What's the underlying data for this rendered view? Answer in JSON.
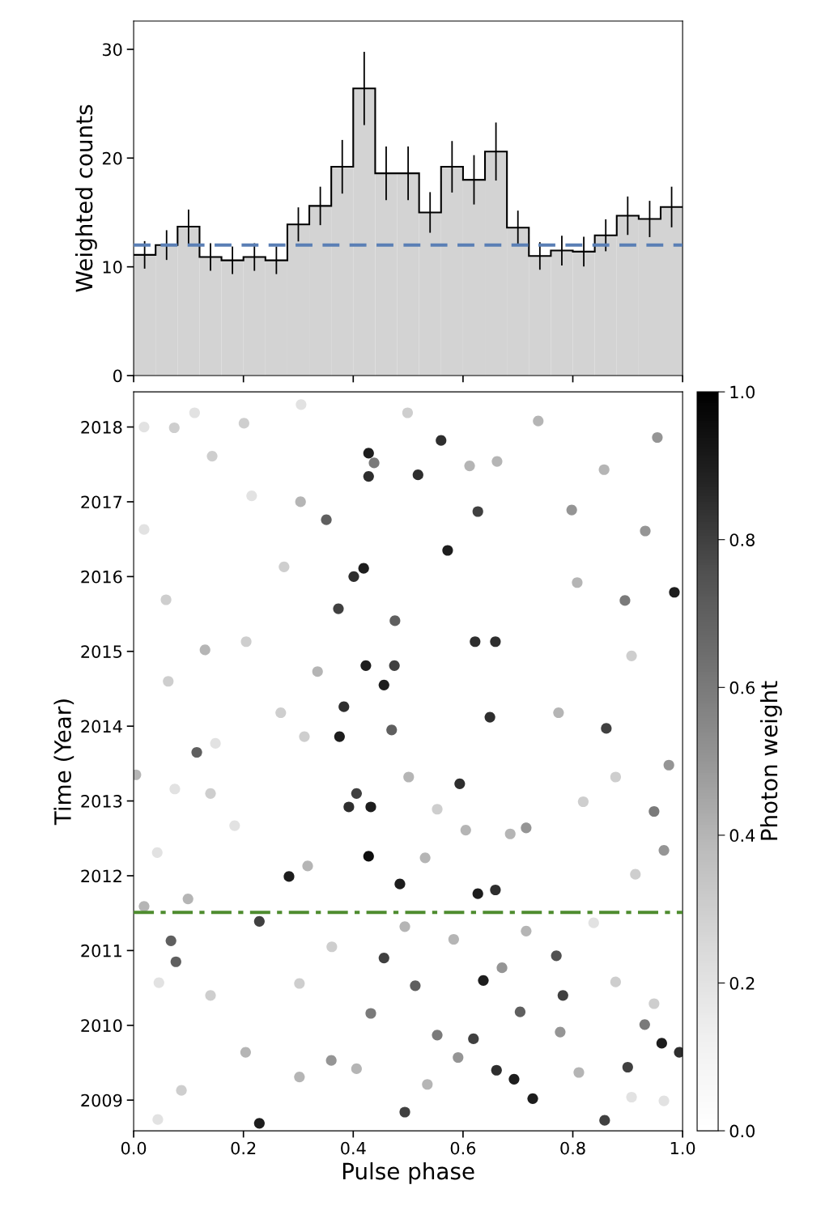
{
  "chart_data": [
    {
      "type": "bar",
      "ylabel": "Weighted counts",
      "color": "#d3d3d3",
      "x": [
        0.02,
        0.06,
        0.1,
        0.14,
        0.18,
        0.22,
        0.26,
        0.3,
        0.34,
        0.38,
        0.42,
        0.46,
        0.5,
        0.54,
        0.58,
        0.62,
        0.66,
        0.7,
        0.74,
        0.78,
        0.82,
        0.86,
        0.9,
        0.94,
        0.98
      ],
      "values": [
        11.1,
        12.0,
        13.7,
        10.9,
        10.6,
        10.9,
        10.6,
        13.9,
        15.6,
        19.2,
        26.4,
        18.6,
        18.6,
        15.0,
        19.2,
        18.0,
        20.6,
        13.6,
        11.0,
        11.5,
        11.4,
        12.9,
        14.7,
        14.4,
        15.5
      ],
      "errors": [
        1.2,
        1.3,
        1.5,
        1.2,
        1.2,
        1.2,
        1.2,
        1.5,
        1.7,
        2.4,
        3.3,
        2.4,
        2.4,
        1.8,
        2.3,
        2.2,
        2.6,
        1.5,
        1.2,
        1.3,
        1.3,
        1.4,
        1.7,
        1.6,
        1.8
      ],
      "xlim": [
        0,
        1
      ],
      "xticks": [
        {
          "value": 0,
          "label": null
        },
        {
          "value": 0.2,
          "label": null
        },
        {
          "value": 0.4,
          "label": null
        },
        {
          "value": 0.6,
          "label": null
        },
        {
          "value": 0.8,
          "label": null
        },
        {
          "value": 1.0,
          "label": null
        }
      ],
      "ylim": [
        0,
        32.6
      ],
      "yticks": [
        0,
        10,
        20,
        30
      ],
      "tick_labels": "y",
      "ref_lines": [
        {
          "axis": "y",
          "value": 12.0,
          "label": null,
          "color": "#5a7fb5",
          "line_style": "dashed"
        }
      ]
    },
    {
      "type": "scatter",
      "xlabel": "Pulse phase",
      "ylabel": "Time (Year)",
      "clabel": "Photon weight",
      "x": [
        0.428,
        0.428,
        0.438,
        0.518,
        0.56,
        0.627,
        0.572,
        0.419,
        0.401,
        0.985,
        0.351,
        0.373,
        0.476,
        0.622,
        0.659,
        0.423,
        0.475,
        0.456,
        0.649,
        0.383,
        0.375,
        0.861,
        0.47,
        0.115,
        0.594,
        0.406,
        0.432,
        0.392,
        0.428,
        0.283,
        0.485,
        0.627,
        0.659,
        0.068,
        0.077,
        0.77,
        0.456,
        0.637,
        0.782,
        0.229,
        0.962,
        0.693,
        0.727,
        0.858,
        0.229,
        0.494,
        0.661,
        0.619,
        0.9,
        0.994,
        0.948,
        0.513,
        0.432,
        0.704,
        0.931,
        0.553,
        0.019,
        0.074,
        0.111,
        0.143,
        0.215,
        0.304,
        0.019,
        0.059,
        0.13,
        0.205,
        0.063,
        0.149,
        0.004,
        0.075,
        0.14,
        0.184,
        0.043,
        0.019,
        0.099,
        0.046,
        0.14,
        0.204,
        0.087,
        0.044,
        0.302,
        0.36,
        0.406,
        0.535,
        0.591,
        0.777,
        0.811,
        0.907,
        0.966,
        0.878,
        0.948,
        0.838,
        0.914,
        0.966,
        0.819,
        0.878,
        0.975,
        0.774,
        0.907,
        0.808,
        0.895,
        0.798,
        0.857,
        0.932,
        0.954,
        0.737,
        0.662,
        0.612,
        0.499,
        0.305,
        0.201,
        0.274,
        0.335,
        0.268,
        0.311,
        0.501,
        0.553,
        0.605,
        0.531,
        0.686,
        0.715,
        0.317,
        0.361,
        0.302,
        0.494,
        0.583,
        0.671,
        0.715
      ],
      "values": [
        2017.65,
        2017.34,
        2017.52,
        2017.36,
        2017.82,
        2016.87,
        2016.35,
        2016.11,
        2016.0,
        2015.79,
        2016.76,
        2015.57,
        2015.41,
        2015.13,
        2015.13,
        2014.81,
        2014.81,
        2014.55,
        2014.12,
        2014.26,
        2013.86,
        2013.97,
        2013.95,
        2013.65,
        2013.23,
        2013.1,
        2012.92,
        2012.92,
        2012.26,
        2011.99,
        2011.89,
        2011.76,
        2011.81,
        2011.13,
        2010.85,
        2010.93,
        2010.9,
        2010.6,
        2010.4,
        2011.39,
        2009.76,
        2009.28,
        2009.02,
        2008.73,
        2008.69,
        2008.84,
        2009.4,
        2009.82,
        2009.44,
        2009.64,
        2012.86,
        2010.53,
        2010.16,
        2010.18,
        2010.01,
        2009.87,
        2018.0,
        2017.99,
        2018.19,
        2017.61,
        2017.08,
        2017.0,
        2016.63,
        2015.69,
        2015.02,
        2015.13,
        2014.6,
        2013.77,
        2013.35,
        2013.16,
        2013.1,
        2012.67,
        2012.31,
        2011.59,
        2011.69,
        2010.57,
        2010.4,
        2009.64,
        2009.13,
        2008.74,
        2009.31,
        2009.53,
        2009.42,
        2009.21,
        2009.57,
        2009.91,
        2009.37,
        2009.04,
        2008.99,
        2010.58,
        2010.29,
        2011.37,
        2012.02,
        2012.34,
        2012.99,
        2013.32,
        2013.48,
        2014.18,
        2014.94,
        2015.92,
        2015.68,
        2016.89,
        2017.43,
        2016.61,
        2017.86,
        2018.08,
        2017.54,
        2017.48,
        2018.19,
        2018.3,
        2018.05,
        2016.13,
        2014.73,
        2014.18,
        2013.86,
        2013.32,
        2012.89,
        2012.61,
        2012.24,
        2012.56,
        2012.64,
        2012.13,
        2011.05,
        2010.56,
        2011.32,
        2011.15,
        2010.77,
        2011.26
      ],
      "cvalues": [
        0.9,
        0.85,
        0.6,
        0.85,
        0.85,
        0.8,
        0.9,
        0.9,
        0.85,
        0.9,
        0.7,
        0.8,
        0.7,
        0.85,
        0.85,
        0.9,
        0.8,
        0.9,
        0.85,
        0.85,
        0.9,
        0.8,
        0.7,
        0.7,
        0.85,
        0.8,
        0.9,
        0.85,
        0.95,
        0.9,
        0.9,
        0.9,
        0.85,
        0.7,
        0.7,
        0.75,
        0.8,
        0.9,
        0.8,
        0.8,
        0.9,
        0.9,
        0.9,
        0.8,
        0.9,
        0.8,
        0.85,
        0.8,
        0.8,
        0.85,
        0.6,
        0.7,
        0.6,
        0.7,
        0.6,
        0.6,
        0.2,
        0.3,
        0.2,
        0.3,
        0.2,
        0.4,
        0.2,
        0.3,
        0.4,
        0.3,
        0.3,
        0.2,
        0.4,
        0.2,
        0.3,
        0.2,
        0.2,
        0.4,
        0.4,
        0.2,
        0.3,
        0.4,
        0.3,
        0.2,
        0.4,
        0.5,
        0.4,
        0.4,
        0.5,
        0.5,
        0.4,
        0.2,
        0.2,
        0.3,
        0.3,
        0.2,
        0.3,
        0.5,
        0.3,
        0.3,
        0.5,
        0.4,
        0.3,
        0.4,
        0.6,
        0.5,
        0.4,
        0.5,
        0.5,
        0.4,
        0.4,
        0.4,
        0.3,
        0.2,
        0.3,
        0.3,
        0.4,
        0.3,
        0.3,
        0.4,
        0.3,
        0.4,
        0.4,
        0.4,
        0.5,
        0.4,
        0.3,
        0.3,
        0.4,
        0.4,
        0.5,
        0.4
      ],
      "clim": [
        0,
        1
      ],
      "cticks": [
        {
          "value": 0,
          "label": "0.0"
        },
        0.2,
        0.4,
        0.6,
        0.8,
        {
          "value": 1,
          "label": "1.0"
        }
      ],
      "xlim": [
        0,
        1
      ],
      "xticks": [
        {
          "value": 0,
          "label": "0.0"
        },
        0.2,
        0.4,
        0.6,
        0.8,
        {
          "value": 1.0,
          "label": "1.0"
        }
      ],
      "ylim": [
        2008.59,
        2018.47
      ],
      "yticks": [
        2009,
        2010,
        2011,
        2012,
        2013,
        2014,
        2015,
        2016,
        2017,
        2018
      ],
      "ref_lines": [
        {
          "axis": "y",
          "value": 2011.51,
          "label": null,
          "color": "#4e8c2f",
          "line_style": "dashdot"
        }
      ]
    }
  ]
}
